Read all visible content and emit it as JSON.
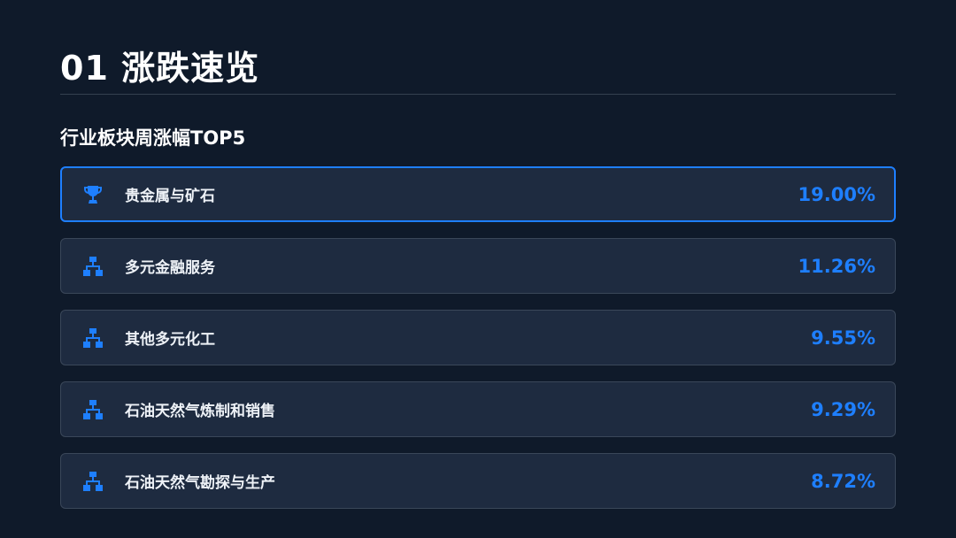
{
  "header": {
    "title": "01 涨跌速览",
    "subtitle": "行业板块周涨幅TOP5"
  },
  "accent_color": "#1e7fff",
  "items": [
    {
      "name": "贵金属与矿石",
      "value": "19.00%",
      "icon": "trophy-icon",
      "active": true
    },
    {
      "name": "多元金融服务",
      "value": "11.26%",
      "icon": "hierarchy-icon"
    },
    {
      "name": "其他多元化工",
      "value": "9.55%",
      "icon": "hierarchy-icon"
    },
    {
      "name": "石油天然气炼制和销售",
      "value": "9.29%",
      "icon": "hierarchy-icon"
    },
    {
      "name": "石油天然气勘探与生产",
      "value": "8.72%",
      "icon": "hierarchy-icon"
    }
  ]
}
